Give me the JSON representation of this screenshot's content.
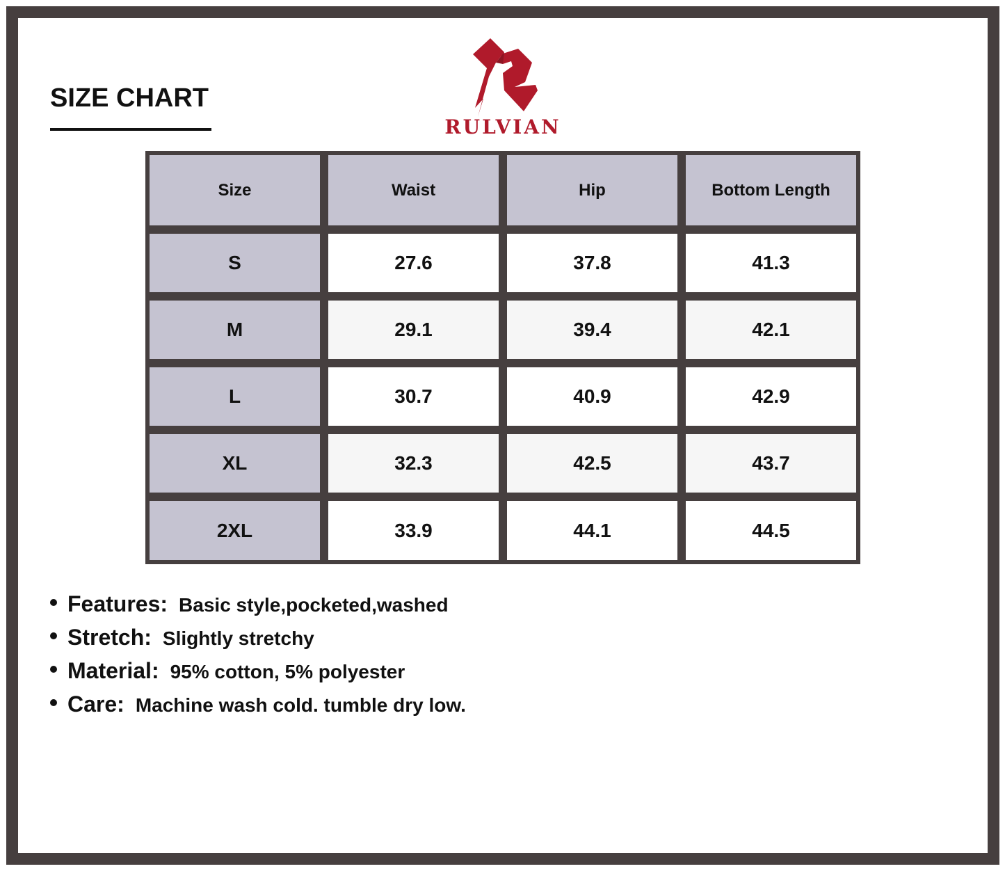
{
  "title": "SIZE CHART",
  "brand": {
    "name": "RULVIAN",
    "color": "#b01a2b"
  },
  "table": {
    "headers": [
      "Size",
      "Waist",
      "Hip",
      "Bottom Length"
    ],
    "rows": [
      [
        "S",
        "27.6",
        "37.8",
        "41.3"
      ],
      [
        "M",
        "29.1",
        "39.4",
        "42.1"
      ],
      [
        "L",
        "30.7",
        "40.9",
        "42.9"
      ],
      [
        "XL",
        "32.3",
        "42.5",
        "43.7"
      ],
      [
        "2XL",
        "33.9",
        "44.1",
        "44.5"
      ]
    ]
  },
  "features": [
    {
      "label": "Features:",
      "value": "Basic style,pocketed,washed"
    },
    {
      "label": "Stretch:",
      "value": "Slightly stretchy"
    },
    {
      "label": "Material:",
      "value": "95% cotton, 5% polyester"
    },
    {
      "label": "Care:",
      "value": "Machine wash cold. tumble dry low."
    }
  ]
}
